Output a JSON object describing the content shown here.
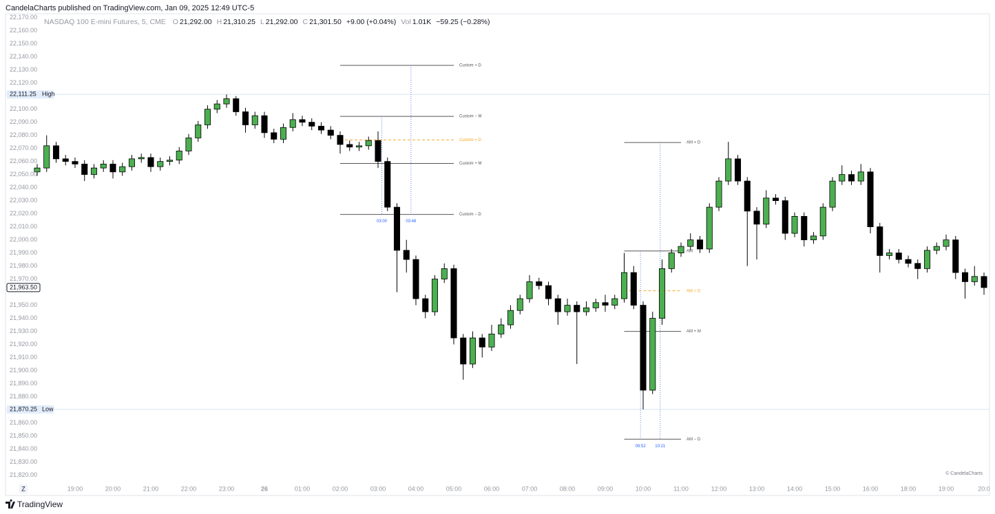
{
  "header": {
    "title": "CandelaCharts published on TradingView.com, Jan 09, 2025 12:49 UTC-5"
  },
  "chart_data": {
    "type": "candlestick",
    "symbol": "NASDAQ 100 E-mini Futures, 5, CME",
    "ohlc_legend": [
      {
        "key": "O",
        "value": "21,292.00"
      },
      {
        "key": "H",
        "value": "21,310.25"
      },
      {
        "key": "L",
        "value": "21,292.00"
      },
      {
        "key": "C",
        "value": "21,301.50"
      }
    ],
    "change": "+9.00 (+0.04%)",
    "volume": {
      "key": "Vol",
      "value": "1.01K"
    },
    "volume_change": "−59.25 (−0.28%)",
    "up_color": "#4caf50",
    "down_color": "#000000",
    "x": [
      0,
      0.25,
      0.5,
      0.75,
      1,
      1.25,
      1.5,
      1.75,
      2,
      2.25,
      2.5,
      2.75,
      3,
      3.25,
      3.5,
      3.75,
      4,
      4.25,
      4.5,
      4.75,
      5,
      5.25,
      5.5,
      5.75,
      6,
      6.25,
      6.5,
      6.75,
      7,
      7.25,
      7.5,
      7.75,
      8,
      8.25,
      8.5,
      8.75,
      9,
      9.25,
      9.5,
      9.75,
      10,
      10.25,
      10.5,
      10.75,
      11,
      11.25,
      11.5,
      11.75,
      12,
      12.25,
      12.5,
      12.75,
      13,
      13.25,
      13.5,
      13.75,
      14,
      14.25,
      14.5,
      14.75,
      15,
      15.25,
      15.5,
      15.75,
      16,
      16.25,
      16.5,
      16.75,
      17,
      17.25,
      17.5,
      17.75,
      18,
      18.25,
      18.5,
      18.75,
      19,
      19.25,
      19.5,
      19.75,
      20,
      20.25,
      20.5,
      20.75,
      21,
      21.25,
      21.5,
      21.75,
      22,
      22.25,
      22.5,
      22.75,
      23,
      23.25,
      23.5,
      23.75,
      24,
      24.25,
      24.5,
      24.75,
      25
    ],
    "open": [
      22052,
      22055,
      22072,
      22062,
      22060,
      22058,
      22050,
      22055,
      22058,
      22052,
      22056,
      22062,
      22063,
      22056,
      22060,
      22061,
      22068,
      22078,
      22088,
      22100,
      22104,
      22108,
      22098,
      22088,
      22095,
      22082,
      22077,
      22086,
      22092,
      22090,
      22087,
      22084,
      22080,
      22073,
      22071,
      22072,
      22076,
      22060,
      22025,
      21992,
      21985,
      21955,
      21945,
      21970,
      21978,
      21925,
      21905,
      21925,
      21918,
      21928,
      21935,
      21946,
      21955,
      21968,
      21965,
      21955,
      21945,
      21950,
      21945,
      21948,
      21952,
      21950,
      21955,
      21975,
      21950,
      21885,
      21940,
      21978,
      21990,
      21995,
      22000,
      21993,
      22025,
      22045,
      22062,
      22045,
      22022,
      22012,
      22032,
      22030,
      22005,
      22018,
      22000,
      22003,
      22025,
      22045,
      22050,
      22045,
      22052,
      22010,
      21988,
      21990,
      21985,
      21982,
      21978,
      21992,
      21995,
      22000,
      21975,
      21968,
      21972
    ],
    "high": [
      22058,
      22080,
      22075,
      22065,
      22063,
      22061,
      22058,
      22061,
      22061,
      22059,
      22065,
      22066,
      22066,
      22063,
      22064,
      22071,
      22081,
      22091,
      22103,
      22107,
      22111.25,
      22110,
      22101,
      22098,
      22098,
      22085,
      22089,
      22097,
      22095,
      22093,
      22090,
      22087,
      22083,
      22076,
      22075,
      22079,
      22083,
      22063,
      22028,
      22000,
      21988,
      21958,
      21973,
      21982,
      21981,
      21928,
      21930,
      21928,
      21935,
      21940,
      21950,
      21958,
      21973,
      21971,
      21968,
      21958,
      21955,
      21953,
      21953,
      21955,
      21958,
      21958,
      21990,
      21980,
      21953,
      21945,
      21985,
      21993,
      21998,
      22005,
      22003,
      22028,
      22048,
      22075,
      22065,
      22048,
      22025,
      22038,
      22035,
      22033,
      22021,
      22021,
      22006,
      22028,
      22048,
      22057,
      22053,
      22058,
      22055,
      22013,
      21993,
      21993,
      21988,
      21985,
      21995,
      21998,
      22004,
      22003,
      21978,
      21980,
      21975
    ],
    "low": [
      22049,
      22052,
      22059,
      22057,
      22055,
      22045,
      22047,
      22052,
      22047,
      22049,
      22053,
      22059,
      22052,
      22053,
      22057,
      22058,
      22065,
      22075,
      22085,
      22097,
      22101,
      22095,
      22082,
      22085,
      22078,
      22074,
      22074,
      22083,
      22087,
      22084,
      22081,
      22077,
      22066,
      22068,
      22068,
      22069,
      22055,
      22022,
      21960,
      21975,
      21950,
      21940,
      21942,
      21967,
      21920,
      21893,
      21902,
      21910,
      21915,
      21925,
      21932,
      21943,
      21952,
      21962,
      21950,
      21935,
      21942,
      21905,
      21942,
      21945,
      21945,
      21947,
      21952,
      21947,
      21870.25,
      21882,
      21935,
      21975,
      21987,
      21992,
      21990,
      21990,
      22022,
      22042,
      22042,
      21980,
      21985,
      22009,
      22027,
      22000,
      22002,
      21995,
      21997,
      22000,
      22022,
      22042,
      22042,
      22042,
      22005,
      21975,
      21985,
      21982,
      21979,
      21970,
      21975,
      21989,
      21992,
      21970,
      21955,
      21965,
      21958
    ],
    "close": [
      22055,
      22072,
      22062,
      22060,
      22058,
      22050,
      22055,
      22058,
      22052,
      22056,
      22062,
      22063,
      22056,
      22060,
      22061,
      22068,
      22078,
      22088,
      22100,
      22104,
      22108,
      22098,
      22088,
      22095,
      22082,
      22077,
      22086,
      22092,
      22090,
      22087,
      22084,
      22080,
      22073,
      22071,
      22072,
      22076,
      22060,
      22025,
      21992,
      21985,
      21955,
      21945,
      21970,
      21978,
      21925,
      21905,
      21925,
      21918,
      21928,
      21935,
      21946,
      21955,
      21968,
      21965,
      21955,
      21945,
      21950,
      21945,
      21948,
      21952,
      21950,
      21955,
      21975,
      21950,
      21885,
      21940,
      21978,
      21990,
      21995,
      22000,
      21993,
      22025,
      22045,
      22062,
      22045,
      22022,
      22012,
      22032,
      22030,
      22005,
      22018,
      22000,
      22003,
      22025,
      22045,
      22050,
      22045,
      22052,
      22010,
      21988,
      21990,
      21985,
      21982,
      21978,
      21992,
      21995,
      22000,
      21975,
      21968,
      21972,
      21963.5
    ],
    "xlim": [
      -0.836,
      25.145
    ],
    "ylim": [
      21815,
      22173
    ],
    "xticks": [
      {
        "value": 1,
        "label": "19:00"
      },
      {
        "value": 2,
        "label": "20:00"
      },
      {
        "value": 3,
        "label": "21:00"
      },
      {
        "value": 4,
        "label": "22:00"
      },
      {
        "value": 5,
        "label": "23:00"
      },
      {
        "value": 6,
        "label": "26"
      },
      {
        "value": 7,
        "label": "01:00"
      },
      {
        "value": 8,
        "label": "02:00"
      },
      {
        "value": 9,
        "label": "03:00"
      },
      {
        "value": 10,
        "label": "04:00"
      },
      {
        "value": 11,
        "label": "05:00"
      },
      {
        "value": 12,
        "label": "06:00"
      },
      {
        "value": 13,
        "label": "07:00"
      },
      {
        "value": 14,
        "label": "08:00"
      },
      {
        "value": 15,
        "label": "09:00"
      },
      {
        "value": 16,
        "label": "10:00"
      },
      {
        "value": 17,
        "label": "11:00"
      },
      {
        "value": 18,
        "label": "12:00"
      },
      {
        "value": 19,
        "label": "13:00"
      },
      {
        "value": 20,
        "label": "14:00"
      },
      {
        "value": 21,
        "label": "15:00"
      },
      {
        "value": 22,
        "label": "16:00"
      },
      {
        "value": 23,
        "label": "18:00"
      },
      {
        "value": 24,
        "label": "19:00"
      },
      {
        "value": 25,
        "label": "20:0"
      }
    ],
    "yticks": [
      {
        "value": 21820,
        "label": "21,820.00"
      },
      {
        "value": 21830,
        "label": "21,830.00"
      },
      {
        "value": 21840,
        "label": "21,840.00"
      },
      {
        "value": 21850,
        "label": "21,850.00"
      },
      {
        "value": 21860,
        "label": "21,860.00"
      },
      {
        "value": 21880,
        "label": "21,880.00"
      },
      {
        "value": 21890,
        "label": "21,890.00"
      },
      {
        "value": 21900,
        "label": "21,900.00"
      },
      {
        "value": 21910,
        "label": "21,910.00"
      },
      {
        "value": 21920,
        "label": "21,920.00"
      },
      {
        "value": 21930,
        "label": "21,930.00"
      },
      {
        "value": 21940,
        "label": "21,940.00"
      },
      {
        "value": 21950,
        "label": "21,950.00"
      },
      {
        "value": 21970,
        "label": "21,970.00"
      },
      {
        "value": 21980,
        "label": "21,980.00"
      },
      {
        "value": 21990,
        "label": "21,990.00"
      },
      {
        "value": 22000,
        "label": "22,000.00"
      },
      {
        "value": 22010,
        "label": "22,010.00"
      },
      {
        "value": 22020,
        "label": "22,020.00"
      },
      {
        "value": 22030,
        "label": "22,030.00"
      },
      {
        "value": 22040,
        "label": "22,040.00"
      },
      {
        "value": 22050,
        "label": "22,050.00"
      },
      {
        "value": 22060,
        "label": "22,060.00"
      },
      {
        "value": 22070,
        "label": "22,070.00"
      },
      {
        "value": 22080,
        "label": "22,080.00"
      },
      {
        "value": 22090,
        "label": "22,090.00"
      },
      {
        "value": 22100,
        "label": "22,100.00"
      },
      {
        "value": 22120,
        "label": "22,120.00"
      },
      {
        "value": 22130,
        "label": "22,130.00"
      },
      {
        "value": 22140,
        "label": "22,140.00"
      },
      {
        "value": 22150,
        "label": "22,150.00"
      },
      {
        "value": 22160,
        "label": "22,160.00"
      },
      {
        "value": 22170,
        "label": "22,170.00"
      }
    ],
    "price_markers": [
      {
        "label": "High",
        "price": {
          "value": 22111.25,
          "label": "22,111.25"
        }
      },
      {
        "label": "Low",
        "price": {
          "value": 21870.25,
          "label": "21,870.25"
        }
      }
    ],
    "last_price": {
      "value": 21963.5,
      "label": "21,963.50"
    },
    "levels": [
      {
        "label": "Custom + D",
        "price": 22133.5,
        "x": [
          8,
          11
        ],
        "color": "#555555",
        "dashed": false
      },
      {
        "label": "Custom − M",
        "price": 22094.5,
        "x": [
          8,
          11
        ],
        "color": "#555555",
        "dashed": false
      },
      {
        "label": "Custom = D",
        "price": 22076.5,
        "x": [
          8,
          11
        ],
        "color": "#f5a623",
        "dashed": true
      },
      {
        "label": "Custom + M",
        "price": 22058.5,
        "x": [
          8,
          11
        ],
        "color": "#555555",
        "dashed": false
      },
      {
        "label": "Custom − D",
        "price": 22019.5,
        "x": [
          8,
          11
        ],
        "color": "#555555",
        "dashed": false
      },
      {
        "label": "AM + D",
        "price": 22074.5,
        "x": [
          15.5,
          17
        ],
        "color": "#555555",
        "dashed": false
      },
      {
        "label": "AM",
        "price": 21991.5,
        "x": [
          15.5,
          17
        ],
        "color": "#555555",
        "dashed": false
      },
      {
        "label": "AM = D",
        "price": 21961,
        "x": [
          15.5,
          17
        ],
        "color": "#f5a623",
        "dashed": true
      },
      {
        "label": "AM + M",
        "price": 21930,
        "x": [
          15.5,
          17
        ],
        "color": "#555555",
        "dashed": false
      },
      {
        "label": "AM − D",
        "price": 21847.5,
        "x": [
          15.5,
          17
        ],
        "color": "#555555",
        "dashed": false
      }
    ],
    "time_markers": [
      {
        "label": "03:00",
        "x": 9.1,
        "price_range": [
          22094.5,
          22019.5
        ]
      },
      {
        "label": "03:48",
        "x": 9.87,
        "price_range": [
          22133.5,
          22019.5
        ]
      },
      {
        "label": "09:52",
        "x": 15.93,
        "price_range": [
          21991.5,
          21847.5
        ]
      },
      {
        "label": "10:21",
        "x": 16.45,
        "price_range": [
          22074.5,
          21847.5
        ]
      }
    ],
    "watermark": "© CandelaCharts"
  },
  "footer": {
    "timezone_button": "Z",
    "brand": "TradingView"
  }
}
